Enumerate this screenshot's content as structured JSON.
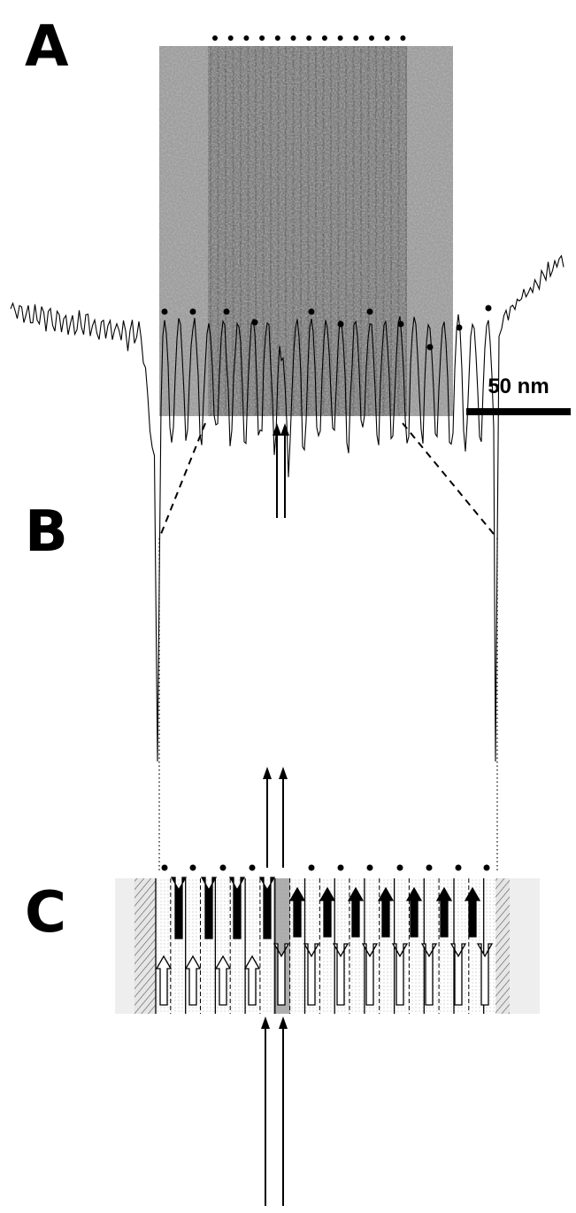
{
  "panels": [
    {
      "label": "A"
    },
    {
      "label": "B"
    },
    {
      "label": "C"
    }
  ],
  "scale_bar": {
    "label": "50 nm"
  }
}
